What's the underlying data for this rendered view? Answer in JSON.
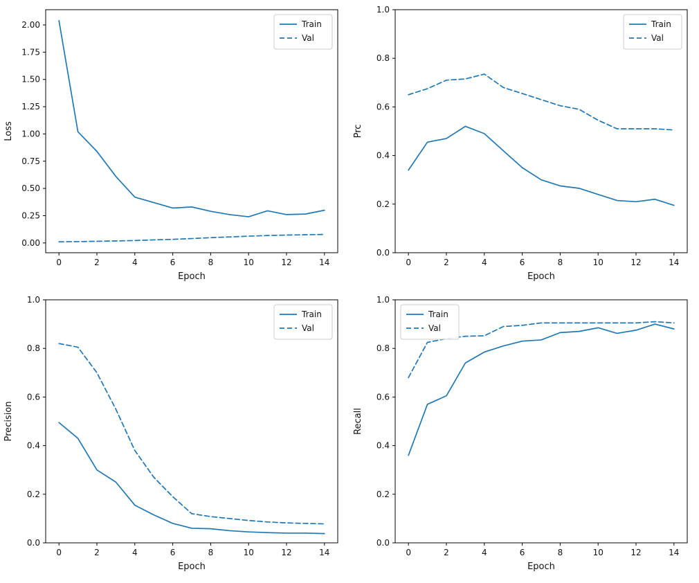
{
  "style": {
    "line_color": "#1f77b4",
    "axis_color": "#000000",
    "legend_border": "#cccccc",
    "background": "#ffffff"
  },
  "chart_data": [
    {
      "type": "line",
      "title": "",
      "xlabel": "Epoch",
      "ylabel": "Loss",
      "x": [
        0,
        1,
        2,
        3,
        4,
        5,
        6,
        7,
        8,
        9,
        10,
        11,
        12,
        13,
        14
      ],
      "xlim": [
        -0.7,
        14.7
      ],
      "ylim": [
        -0.09,
        2.14
      ],
      "xticks": [
        0,
        2,
        4,
        6,
        8,
        10,
        12,
        14
      ],
      "xtick_labels": [
        "0",
        "2",
        "4",
        "6",
        "8",
        "10",
        "12",
        "14"
      ],
      "yticks": [
        0.0,
        0.25,
        0.5,
        0.75,
        1.0,
        1.25,
        1.5,
        1.75,
        2.0
      ],
      "ytick_labels": [
        "0.00",
        "0.25",
        "0.50",
        "0.75",
        "1.00",
        "1.25",
        "1.50",
        "1.75",
        "2.00"
      ],
      "legend": {
        "position": "top-right",
        "entries": [
          "Train",
          "Val"
        ]
      },
      "series": [
        {
          "name": "Train",
          "style": "solid",
          "values": [
            2.04,
            1.02,
            0.84,
            0.61,
            0.42,
            0.37,
            0.32,
            0.33,
            0.29,
            0.26,
            0.24,
            0.295,
            0.26,
            0.265,
            0.3
          ]
        },
        {
          "name": "Val",
          "style": "dashed",
          "values": [
            0.01,
            0.012,
            0.015,
            0.018,
            0.022,
            0.028,
            0.033,
            0.04,
            0.048,
            0.055,
            0.062,
            0.068,
            0.072,
            0.075,
            0.078
          ]
        }
      ]
    },
    {
      "type": "line",
      "title": "",
      "xlabel": "Epoch",
      "ylabel": "Prc",
      "x": [
        0,
        1,
        2,
        3,
        4,
        5,
        6,
        7,
        8,
        9,
        10,
        11,
        12,
        13,
        14
      ],
      "xlim": [
        -0.7,
        14.7
      ],
      "ylim": [
        0.0,
        1.0
      ],
      "xticks": [
        0,
        2,
        4,
        6,
        8,
        10,
        12,
        14
      ],
      "xtick_labels": [
        "0",
        "2",
        "4",
        "6",
        "8",
        "10",
        "12",
        "14"
      ],
      "yticks": [
        0.0,
        0.2,
        0.4,
        0.6,
        0.8,
        1.0
      ],
      "ytick_labels": [
        "0.0",
        "0.2",
        "0.4",
        "0.6",
        "0.8",
        "1.0"
      ],
      "legend": {
        "position": "top-right",
        "entries": [
          "Train",
          "Val"
        ]
      },
      "series": [
        {
          "name": "Train",
          "style": "solid",
          "values": [
            0.34,
            0.455,
            0.47,
            0.52,
            0.49,
            0.42,
            0.35,
            0.3,
            0.275,
            0.265,
            0.24,
            0.215,
            0.21,
            0.22,
            0.195
          ]
        },
        {
          "name": "Val",
          "style": "dashed",
          "values": [
            0.65,
            0.675,
            0.71,
            0.715,
            0.735,
            0.68,
            0.655,
            0.63,
            0.605,
            0.59,
            0.545,
            0.51,
            0.51,
            0.51,
            0.505
          ]
        }
      ]
    },
    {
      "type": "line",
      "title": "",
      "xlabel": "Epoch",
      "ylabel": "Precision",
      "x": [
        0,
        1,
        2,
        3,
        4,
        5,
        6,
        7,
        8,
        9,
        10,
        11,
        12,
        13,
        14
      ],
      "xlim": [
        -0.7,
        14.7
      ],
      "ylim": [
        0.0,
        1.0
      ],
      "xticks": [
        0,
        2,
        4,
        6,
        8,
        10,
        12,
        14
      ],
      "xtick_labels": [
        "0",
        "2",
        "4",
        "6",
        "8",
        "10",
        "12",
        "14"
      ],
      "yticks": [
        0.0,
        0.2,
        0.4,
        0.6,
        0.8,
        1.0
      ],
      "ytick_labels": [
        "0.0",
        "0.2",
        "0.4",
        "0.6",
        "0.8",
        "1.0"
      ],
      "legend": {
        "position": "top-right",
        "entries": [
          "Train",
          "Val"
        ]
      },
      "series": [
        {
          "name": "Train",
          "style": "solid",
          "values": [
            0.495,
            0.43,
            0.3,
            0.25,
            0.155,
            0.115,
            0.08,
            0.06,
            0.058,
            0.05,
            0.045,
            0.042,
            0.04,
            0.04,
            0.038
          ]
        },
        {
          "name": "Val",
          "style": "dashed",
          "values": [
            0.82,
            0.805,
            0.7,
            0.55,
            0.38,
            0.27,
            0.19,
            0.12,
            0.108,
            0.1,
            0.092,
            0.086,
            0.082,
            0.08,
            0.078
          ]
        }
      ]
    },
    {
      "type": "line",
      "title": "",
      "xlabel": "Epoch",
      "ylabel": "Recall",
      "x": [
        0,
        1,
        2,
        3,
        4,
        5,
        6,
        7,
        8,
        9,
        10,
        11,
        12,
        13,
        14
      ],
      "xlim": [
        -0.7,
        14.7
      ],
      "ylim": [
        0.0,
        1.0
      ],
      "xticks": [
        0,
        2,
        4,
        6,
        8,
        10,
        12,
        14
      ],
      "xtick_labels": [
        "0",
        "2",
        "4",
        "6",
        "8",
        "10",
        "12",
        "14"
      ],
      "yticks": [
        0.0,
        0.2,
        0.4,
        0.6,
        0.8,
        1.0
      ],
      "ytick_labels": [
        "0.0",
        "0.2",
        "0.4",
        "0.6",
        "0.8",
        "1.0"
      ],
      "legend": {
        "position": "top-left",
        "entries": [
          "Train",
          "Val"
        ]
      },
      "series": [
        {
          "name": "Train",
          "style": "solid",
          "values": [
            0.36,
            0.57,
            0.605,
            0.74,
            0.785,
            0.81,
            0.83,
            0.835,
            0.865,
            0.87,
            0.885,
            0.862,
            0.875,
            0.9,
            0.88
          ]
        },
        {
          "name": "Val",
          "style": "dashed",
          "values": [
            0.68,
            0.825,
            0.84,
            0.85,
            0.852,
            0.89,
            0.895,
            0.905,
            0.905,
            0.905,
            0.905,
            0.905,
            0.905,
            0.91,
            0.905
          ]
        }
      ]
    }
  ]
}
